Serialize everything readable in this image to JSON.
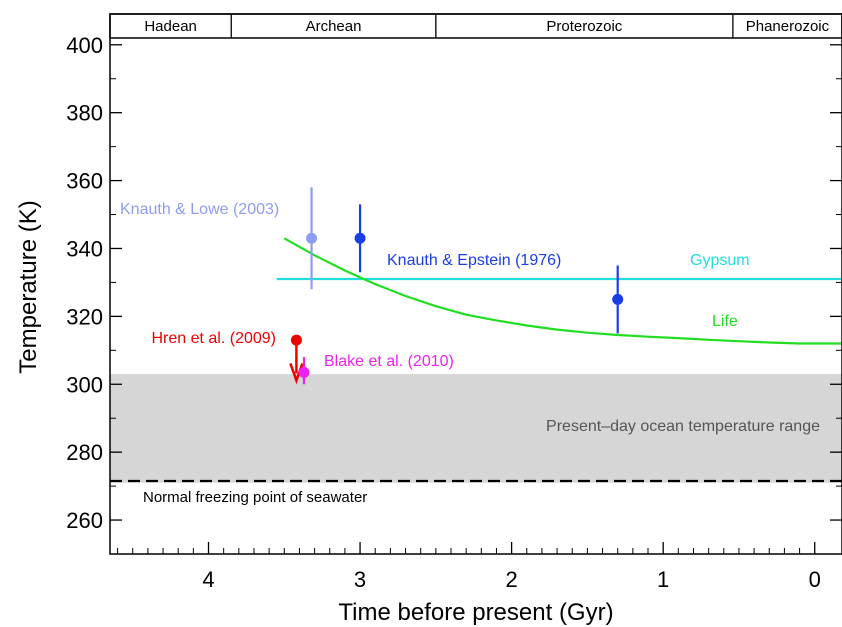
{
  "chart_data": {
    "type": "scatter",
    "xlabel": "Time before present  (Gyr)",
    "ylabel": "Temperature  (K)",
    "xlim": [
      4.65,
      -0.18
    ],
    "ylim": [
      250,
      402
    ],
    "x_ticks": [
      {
        "value": 4,
        "label": "4"
      },
      {
        "value": 3,
        "label": "3"
      },
      {
        "value": 2,
        "label": "2"
      },
      {
        "value": 1,
        "label": "1"
      },
      {
        "value": 0,
        "label": "0"
      }
    ],
    "y_ticks": [
      {
        "value": 260,
        "label": "260"
      },
      {
        "value": 280,
        "label": "280"
      },
      {
        "value": 300,
        "label": "300"
      },
      {
        "value": 320,
        "label": "320"
      },
      {
        "value": 340,
        "label": "340"
      },
      {
        "value": 360,
        "label": "360"
      },
      {
        "value": 380,
        "label": "380"
      },
      {
        "value": 400,
        "label": "400"
      }
    ],
    "eons": [
      {
        "label": "Hadean",
        "start": 4.65,
        "end": 3.85
      },
      {
        "label": "Archean",
        "start": 3.85,
        "end": 2.5
      },
      {
        "label": "Proterozoic",
        "start": 2.5,
        "end": 0.54
      },
      {
        "label": "Phanerozoic",
        "start": 0.54,
        "end": -0.18
      }
    ],
    "ocean_range": {
      "y0": 271,
      "y1": 303,
      "label": "Present–day ocean temperature range",
      "color": "#d6d6d6"
    },
    "freezing": {
      "y": 271.5,
      "label": "Normal freezing point of seawater"
    },
    "gypsum": {
      "label": "Gypsum",
      "y": 331,
      "x0": 3.55,
      "x1": -0.18,
      "color": "#22dddd"
    },
    "life": {
      "label": "Life",
      "color": "#22dd22",
      "x": [
        3.5,
        3.3,
        3.1,
        2.9,
        2.7,
        2.5,
        2.3,
        2.1,
        1.9,
        1.7,
        1.5,
        1.3,
        1.1,
        0.9,
        0.7,
        0.5,
        0.3,
        0.1,
        -0.18
      ],
      "y": [
        343,
        338,
        333.5,
        329.5,
        326,
        323,
        320.5,
        318.8,
        317.3,
        316.1,
        315.2,
        314.5,
        314,
        313.6,
        313.1,
        312.7,
        312.3,
        312,
        312
      ]
    },
    "points": [
      {
        "label": "Knauth & Lowe (2003)",
        "color": "#8e9cf2",
        "x": 3.32,
        "y": 343,
        "y_low": 328,
        "y_high": 358
      },
      {
        "label": "Knauth & Epstein (1976)",
        "color": "#1a3ee6",
        "x": 3.0,
        "y": 343,
        "y_low": 333,
        "y_high": 353
      },
      {
        "label": "",
        "color": "#1a3ee6",
        "x": 1.3,
        "y": 325,
        "y_low": 315,
        "y_high": 335
      },
      {
        "label": "Hren et al. (2009)",
        "color": "#ee0000",
        "x": 3.42,
        "y": 313,
        "arrow_to": 302
      },
      {
        "label": "Blake et al. (2010)",
        "color": "#ee22ee",
        "x": 3.37,
        "y": 303.5,
        "y_low": 300,
        "y_high": 308
      }
    ]
  }
}
